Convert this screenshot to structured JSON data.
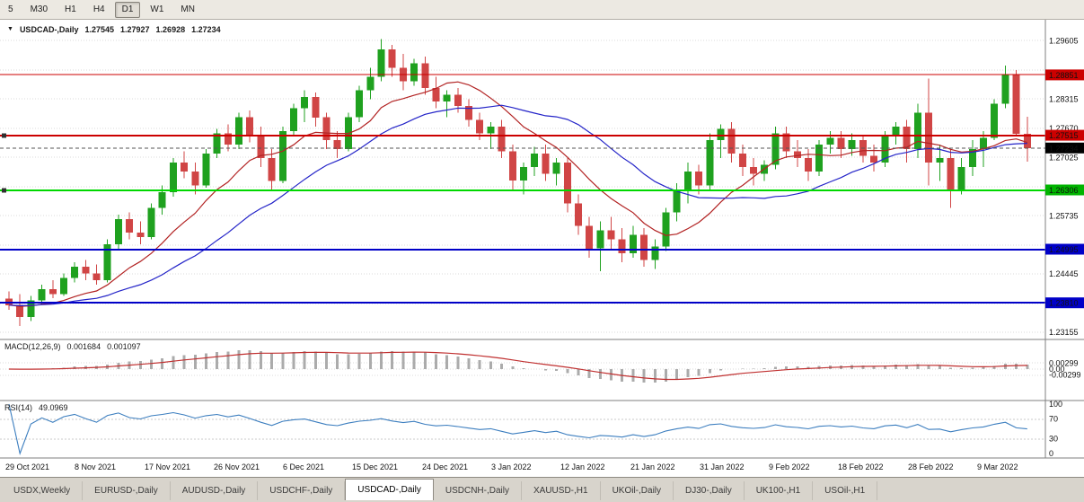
{
  "toolbar": {
    "timeframes": [
      {
        "label": "5",
        "active": false
      },
      {
        "label": "M30",
        "active": false
      },
      {
        "label": "H1",
        "active": false
      },
      {
        "label": "H4",
        "active": false
      },
      {
        "label": "D1",
        "active": true
      },
      {
        "label": "W1",
        "active": false
      },
      {
        "label": "MN",
        "active": false
      }
    ]
  },
  "chart_header": {
    "collapse_icon": "▼",
    "symbol": "USDCAD-,Daily",
    "open": "1.27545",
    "high": "1.27927",
    "low": "1.26928",
    "close": "1.27234"
  },
  "macd": {
    "label": "MACD(12,26,9)",
    "main_value": "0.001684",
    "signal_value": "0.001097",
    "axis_labels": [
      {
        "text": "0.00299",
        "value": 0.00299
      },
      {
        "text": "0.00",
        "value": 0
      },
      {
        "text": "-0.00299",
        "value": -0.00299
      }
    ]
  },
  "rsi": {
    "label": "RSI(14)",
    "value": "49.0969",
    "axis_labels": [
      {
        "text": "100",
        "value": 100
      },
      {
        "text": "70",
        "value": 70
      },
      {
        "text": "30",
        "value": 30
      },
      {
        "text": "0",
        "value": 0
      }
    ],
    "levels": [
      70,
      30
    ]
  },
  "chart_data": {
    "type": "candlestick",
    "title": "USDCAD-,Daily",
    "x_labels": [
      "29 Oct 2021",
      "8 Nov 2021",
      "17 Nov 2021",
      "26 Nov 2021",
      "6 Dec 2021",
      "15 Dec 2021",
      "24 Dec 2021",
      "3 Jan 2022",
      "12 Jan 2022",
      "21 Jan 2022",
      "31 Jan 2022",
      "9 Feb 2022",
      "18 Feb 2022",
      "28 Feb 2022",
      "9 Mar 2022"
    ],
    "y_axis": {
      "visible_labels": [
        1.29605,
        1.28315,
        1.2767,
        1.27025,
        1.25735,
        1.24445,
        1.23155
      ],
      "grid_top": 1.29605,
      "grid_step": 0.00645,
      "grid_count": 11,
      "range": [
        1.2304,
        1.2999
      ]
    },
    "candles": [
      [
        1.239,
        1.2406,
        1.2366,
        1.2376
      ],
      [
        1.2376,
        1.24,
        1.233,
        1.235
      ],
      [
        1.235,
        1.2396,
        1.2341,
        1.2386
      ],
      [
        1.2386,
        1.2421,
        1.2376,
        1.2411
      ],
      [
        1.2411,
        1.2431,
        1.2391,
        1.24
      ],
      [
        1.24,
        1.2446,
        1.2396,
        1.2436
      ],
      [
        1.2436,
        1.2471,
        1.2426,
        1.2461
      ],
      [
        1.2461,
        1.2476,
        1.2431,
        1.2446
      ],
      [
        1.2446,
        1.2466,
        1.2421,
        1.2431
      ],
      [
        1.2431,
        1.2521,
        1.2426,
        1.2511
      ],
      [
        1.2511,
        1.2576,
        1.2501,
        1.2566
      ],
      [
        1.2566,
        1.2581,
        1.2521,
        1.2536
      ],
      [
        1.2536,
        1.2561,
        1.2511,
        1.2526
      ],
      [
        1.2526,
        1.2601,
        1.2521,
        1.2591
      ],
      [
        1.2591,
        1.2641,
        1.2576,
        1.2626
      ],
      [
        1.2626,
        1.2701,
        1.2616,
        1.2691
      ],
      [
        1.2691,
        1.2716,
        1.2656,
        1.2671
      ],
      [
        1.2671,
        1.2691,
        1.2621,
        1.2641
      ],
      [
        1.2641,
        1.2721,
        1.2636,
        1.2711
      ],
      [
        1.2711,
        1.2766,
        1.2701,
        1.2756
      ],
      [
        1.2756,
        1.2776,
        1.2716,
        1.2731
      ],
      [
        1.2731,
        1.2801,
        1.2721,
        1.2791
      ],
      [
        1.2791,
        1.2806,
        1.2736,
        1.2751
      ],
      [
        1.2751,
        1.2771,
        1.2681,
        1.2701
      ],
      [
        1.2701,
        1.2721,
        1.2631,
        1.2651
      ],
      [
        1.2651,
        1.2771,
        1.2646,
        1.2761
      ],
      [
        1.2761,
        1.2821,
        1.2751,
        1.2811
      ],
      [
        1.2811,
        1.2851,
        1.2781,
        1.2836
      ],
      [
        1.2836,
        1.2846,
        1.2771,
        1.2791
      ],
      [
        1.2791,
        1.2801,
        1.2721,
        1.2741
      ],
      [
        1.2741,
        1.2761,
        1.2701,
        1.2721
      ],
      [
        1.2721,
        1.2801,
        1.2716,
        1.2791
      ],
      [
        1.2791,
        1.2861,
        1.2781,
        1.2851
      ],
      [
        1.2851,
        1.2901,
        1.2831,
        1.2881
      ],
      [
        1.2881,
        1.2964,
        1.2871,
        1.2941
      ],
      [
        1.2941,
        1.2951,
        1.2881,
        1.2901
      ],
      [
        1.2901,
        1.2931,
        1.2851,
        1.2871
      ],
      [
        1.2871,
        1.2921,
        1.2861,
        1.2911
      ],
      [
        1.2911,
        1.2926,
        1.2841,
        1.2856
      ],
      [
        1.2856,
        1.2881,
        1.2811,
        1.2826
      ],
      [
        1.2826,
        1.2851,
        1.2791,
        1.2841
      ],
      [
        1.2841,
        1.2856,
        1.2801,
        1.2816
      ],
      [
        1.2816,
        1.2831,
        1.2771,
        1.2786
      ],
      [
        1.2786,
        1.2801,
        1.2741,
        1.2756
      ],
      [
        1.2756,
        1.2781,
        1.2721,
        1.2771
      ],
      [
        1.2771,
        1.2786,
        1.2701,
        1.2716
      ],
      [
        1.2716,
        1.2731,
        1.2631,
        1.2651
      ],
      [
        1.2651,
        1.2691,
        1.2621,
        1.2681
      ],
      [
        1.2681,
        1.2726,
        1.2661,
        1.2711
      ],
      [
        1.2711,
        1.2731,
        1.2651,
        1.2666
      ],
      [
        1.2666,
        1.2701,
        1.2641,
        1.2691
      ],
      [
        1.2691,
        1.2701,
        1.2581,
        1.2601
      ],
      [
        1.2601,
        1.2621,
        1.2531,
        1.2551
      ],
      [
        1.2551,
        1.2571,
        1.2481,
        1.2501
      ],
      [
        1.2501,
        1.2561,
        1.2451,
        1.2541
      ],
      [
        1.2541,
        1.2571,
        1.2501,
        1.2521
      ],
      [
        1.2521,
        1.2546,
        1.2471,
        1.2491
      ],
      [
        1.2491,
        1.2551,
        1.2481,
        1.2531
      ],
      [
        1.2531,
        1.2546,
        1.2461,
        1.2476
      ],
      [
        1.2476,
        1.2521,
        1.2456,
        1.2506
      ],
      [
        1.2506,
        1.2591,
        1.2496,
        1.2581
      ],
      [
        1.2581,
        1.2646,
        1.2561,
        1.2631
      ],
      [
        1.2631,
        1.2691,
        1.2601,
        1.2671
      ],
      [
        1.2671,
        1.2686,
        1.2621,
        1.2641
      ],
      [
        1.2641,
        1.2756,
        1.2631,
        1.2741
      ],
      [
        1.2741,
        1.2776,
        1.2701,
        1.2766
      ],
      [
        1.2766,
        1.2781,
        1.2691,
        1.2711
      ],
      [
        1.2711,
        1.2731,
        1.2661,
        1.2681
      ],
      [
        1.2681,
        1.2701,
        1.2641,
        1.2666
      ],
      [
        1.2666,
        1.2696,
        1.2651,
        1.2686
      ],
      [
        1.2686,
        1.2771,
        1.2676,
        1.2756
      ],
      [
        1.2756,
        1.2771,
        1.2701,
        1.2716
      ],
      [
        1.2716,
        1.2741,
        1.2681,
        1.2701
      ],
      [
        1.2701,
        1.2721,
        1.2651,
        1.2671
      ],
      [
        1.2671,
        1.2741,
        1.2661,
        1.2731
      ],
      [
        1.2731,
        1.2761,
        1.2711,
        1.2746
      ],
      [
        1.2746,
        1.2761,
        1.2701,
        1.2721
      ],
      [
        1.2721,
        1.2756,
        1.2706,
        1.2741
      ],
      [
        1.2741,
        1.2751,
        1.2691,
        1.2706
      ],
      [
        1.2706,
        1.2731,
        1.2671,
        1.2691
      ],
      [
        1.2691,
        1.2761,
        1.2681,
        1.2751
      ],
      [
        1.2751,
        1.2781,
        1.2731,
        1.2771
      ],
      [
        1.2771,
        1.2786,
        1.2691,
        1.2721
      ],
      [
        1.2721,
        1.2821,
        1.2701,
        1.2801
      ],
      [
        1.2801,
        1.2877,
        1.2641,
        1.2691
      ],
      [
        1.2691,
        1.2731,
        1.2651,
        1.2701
      ],
      [
        1.2701,
        1.2721,
        1.2591,
        1.2631
      ],
      [
        1.2631,
        1.2701,
        1.2621,
        1.2681
      ],
      [
        1.2681,
        1.2741,
        1.2661,
        1.2721
      ],
      [
        1.2721,
        1.2761,
        1.2681,
        1.2746
      ],
      [
        1.2746,
        1.2831,
        1.2741,
        1.2821
      ],
      [
        1.2821,
        1.2906,
        1.2811,
        1.2886
      ],
      [
        1.2886,
        1.2896,
        1.2751,
        1.2755
      ],
      [
        1.27545,
        1.27927,
        1.26928,
        1.27234
      ]
    ],
    "moving_averages": [
      {
        "name": "fast-ma",
        "period": 10,
        "color": "#B22222"
      },
      {
        "name": "slow-ma",
        "period": 21,
        "color": "#2424C8"
      }
    ],
    "horizontal_lines": [
      {
        "price": 1.28851,
        "color": "#CC0000",
        "width": 1,
        "handle": false
      },
      {
        "price": 1.27515,
        "color": "#CC0000",
        "width": 2,
        "handle": true
      },
      {
        "price": 1.26306,
        "color": "#00D800",
        "width": 2,
        "handle": true
      },
      {
        "price": 1.24995,
        "color": "#0000C8",
        "width": 2,
        "handle": false
      },
      {
        "price": 1.2381,
        "color": "#0000C8",
        "width": 2,
        "handle": false
      }
    ],
    "current_price": 1.27234,
    "price_badges": [
      {
        "text": "1.28851",
        "price": 1.28851,
        "color": "#CC0000"
      },
      {
        "text": "1.27515",
        "price": 1.27515,
        "color": "#CC0000"
      },
      {
        "text": "1.27234",
        "price": 1.27234,
        "color": "#000000"
      },
      {
        "text": "1.26306",
        "price": 1.26306,
        "color": "#00B400"
      },
      {
        "text": "1.24995",
        "price": 1.24995,
        "color": "#0000C8"
      },
      {
        "text": "1.23810",
        "price": 1.2381,
        "color": "#0000C8"
      }
    ]
  },
  "tabs": [
    {
      "label": "USDX,Weekly",
      "active": false
    },
    {
      "label": "EURUSD-,Daily",
      "active": false
    },
    {
      "label": "AUDUSD-,Daily",
      "active": false
    },
    {
      "label": "USDCHF-,Daily",
      "active": false
    },
    {
      "label": "USDCAD-,Daily",
      "active": true
    },
    {
      "label": "USDCNH-,Daily",
      "active": false
    },
    {
      "label": "XAUUSD-,H1",
      "active": false
    },
    {
      "label": "UKOil-,Daily",
      "active": false
    },
    {
      "label": "DJ30-,Daily",
      "active": false
    },
    {
      "label": "UK100-,H1",
      "active": false
    },
    {
      "label": "USOil-,H1",
      "active": false
    }
  ],
  "colors": {
    "up": "#1FA11F",
    "down": "#D04545",
    "macd_hist": "#ABABAB",
    "macd_signal": "#C03030",
    "rsi_line": "#3C7EBF",
    "grid": "#DBDBDB",
    "separator": "#7F7F7F",
    "axis_text": "#111111"
  }
}
